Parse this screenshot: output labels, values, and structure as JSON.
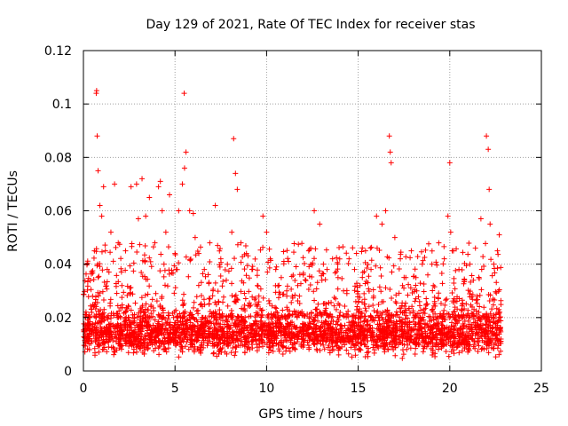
{
  "chart_data": {
    "type": "scatter",
    "title": "Day 129 of 2021, Rate Of TEC Index for receiver stas",
    "xlabel": "GPS time / hours",
    "ylabel": "ROTI / TECUs",
    "xlim": [
      0,
      25
    ],
    "ylim": [
      0,
      0.12
    ],
    "xticks": [
      0,
      5,
      10,
      15,
      20,
      25
    ],
    "xtick_labels": [
      "0",
      "5",
      "10",
      "15",
      "20",
      "25"
    ],
    "yticks": [
      0,
      0.02,
      0.04,
      0.06,
      0.08,
      0.1,
      0.12
    ],
    "ytick_labels": [
      "0",
      "0.02",
      "0.04",
      "0.06",
      "0.08",
      "0.1",
      "0.12"
    ],
    "grid": true,
    "marker": "+",
    "color": "#ff0000",
    "dense_band": {
      "x_range": [
        0,
        22.8
      ],
      "y_range": [
        0.004,
        0.024
      ],
      "note": "dense cluster of ROTI values across the day"
    },
    "series": [
      {
        "name": "stas",
        "x": [
          0.1,
          0.3,
          0.5,
          0.6,
          0.7,
          0.72,
          0.75,
          0.8,
          0.9,
          1.0,
          1.1,
          1.2,
          1.3,
          1.5,
          1.7,
          1.9,
          2.1,
          2.3,
          2.6,
          2.9,
          3.0,
          3.2,
          3.4,
          3.6,
          3.9,
          4.1,
          4.2,
          4.3,
          4.4,
          4.5,
          4.7,
          5.0,
          5.2,
          5.4,
          5.5,
          5.52,
          5.6,
          5.8,
          6.0,
          6.1,
          6.3,
          6.6,
          6.9,
          7.2,
          7.5,
          7.8,
          8.1,
          8.2,
          8.3,
          8.4,
          8.6,
          8.9,
          9.2,
          9.5,
          9.8,
          10.0,
          10.2,
          10.5,
          10.8,
          11.1,
          11.4,
          11.7,
          12.0,
          12.3,
          12.6,
          12.9,
          13.1,
          13.3,
          13.6,
          13.9,
          14.2,
          14.5,
          14.8,
          15.1,
          15.4,
          15.7,
          16.0,
          16.3,
          16.5,
          16.7,
          16.75,
          16.8,
          17.0,
          17.3,
          17.6,
          17.9,
          18.2,
          18.5,
          18.8,
          19.1,
          19.4,
          19.7,
          19.9,
          20.0,
          20.05,
          20.2,
          20.5,
          20.8,
          21.1,
          21.4,
          21.7,
          22.0,
          22.1,
          22.15,
          22.2,
          22.4,
          22.6,
          22.7
        ],
        "y": [
          0.016,
          0.021,
          0.028,
          0.045,
          0.104,
          0.105,
          0.088,
          0.075,
          0.062,
          0.058,
          0.069,
          0.045,
          0.038,
          0.052,
          0.07,
          0.048,
          0.032,
          0.045,
          0.069,
          0.07,
          0.057,
          0.072,
          0.058,
          0.065,
          0.048,
          0.069,
          0.071,
          0.06,
          0.04,
          0.052,
          0.066,
          0.044,
          0.06,
          0.07,
          0.104,
          0.076,
          0.082,
          0.06,
          0.059,
          0.05,
          0.044,
          0.038,
          0.048,
          0.062,
          0.042,
          0.034,
          0.052,
          0.087,
          0.074,
          0.068,
          0.048,
          0.044,
          0.038,
          0.032,
          0.058,
          0.052,
          0.042,
          0.038,
          0.035,
          0.03,
          0.028,
          0.032,
          0.036,
          0.045,
          0.06,
          0.055,
          0.04,
          0.038,
          0.042,
          0.035,
          0.03,
          0.042,
          0.038,
          0.032,
          0.045,
          0.038,
          0.058,
          0.055,
          0.06,
          0.088,
          0.082,
          0.078,
          0.05,
          0.042,
          0.035,
          0.045,
          0.03,
          0.04,
          0.036,
          0.032,
          0.048,
          0.042,
          0.058,
          0.078,
          0.052,
          0.045,
          0.038,
          0.034,
          0.04,
          0.046,
          0.057,
          0.088,
          0.083,
          0.068,
          0.055,
          0.04,
          0.045,
          0.051
        ]
      }
    ]
  }
}
